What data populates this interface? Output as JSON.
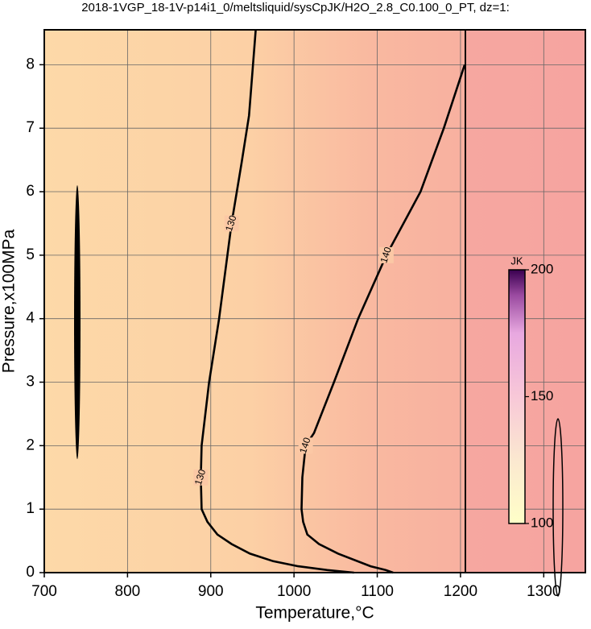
{
  "chart_data": {
    "type": "contour",
    "title": "2018-1VGP_18-1V-p14i1_0/meltsliquid/sysCpJK/H2O_2.8_C0.100_0_PT, dz=1:",
    "xlabel": "Temperature,°C",
    "ylabel": "Pressure,x100MPa",
    "xlim": [
      700,
      1350
    ],
    "ylim": [
      0,
      8.55
    ],
    "xticks": [
      700,
      800,
      900,
      1000,
      1100,
      1200,
      1300
    ],
    "yticks": [
      0,
      1,
      2,
      3,
      4,
      5,
      6,
      7,
      8
    ],
    "grid": true,
    "contours": [
      {
        "level": 130,
        "color": "#000000",
        "x": [
          954,
          946,
          937,
          925,
          910,
          898,
          889,
          888,
          889,
          896,
          908,
          925,
          947,
          975,
          1005,
          1040,
          1072
        ],
        "y": [
          8.55,
          7.2,
          6.45,
          5.5,
          4.0,
          3.0,
          2.0,
          1.5,
          1.0,
          0.8,
          0.6,
          0.45,
          0.3,
          0.18,
          0.1,
          0.04,
          0
        ]
      },
      {
        "level": 140,
        "color": "#000000",
        "x": [
          1205,
          1180,
          1152,
          1111,
          1077,
          1048,
          1024,
          1014,
          1010,
          1009,
          1011,
          1016,
          1030,
          1053,
          1092,
          1110,
          1119
        ],
        "y": [
          8.0,
          7.0,
          6.0,
          5.0,
          4.0,
          3.0,
          2.2,
          2.0,
          1.5,
          1.0,
          0.8,
          0.6,
          0.45,
          0.3,
          0.1,
          0.04,
          0
        ]
      }
    ],
    "colorbar": {
      "label": "JK",
      "zlim": [
        100,
        200
      ],
      "zticks": [
        100,
        150,
        200
      ]
    }
  }
}
